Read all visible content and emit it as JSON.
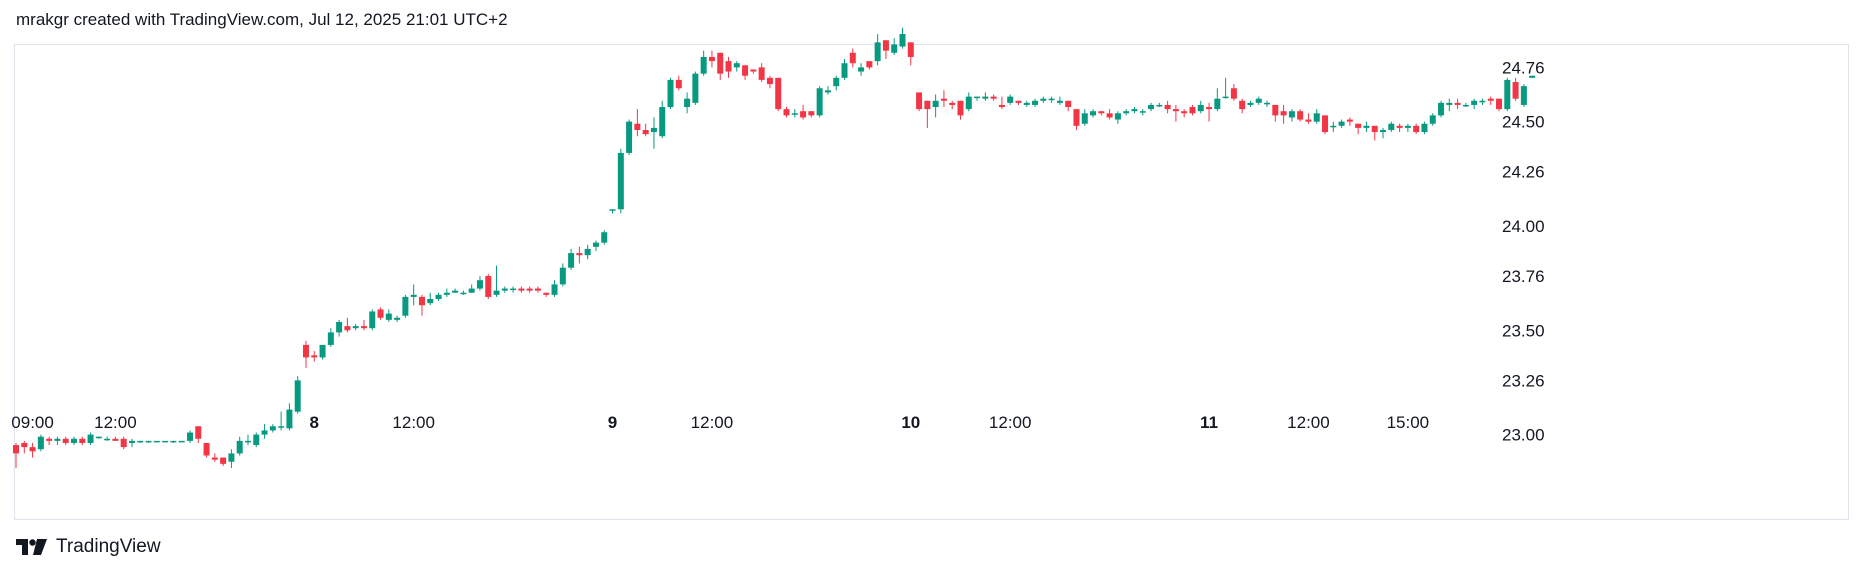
{
  "header": {
    "caption": "mrakgr created with TradingView.com, Jul 12, 2025 21:01 UTC+2"
  },
  "footer": {
    "brand": "TradingView",
    "logo_icon": "tradingview-logo-icon"
  },
  "colors": {
    "up": "#089981",
    "down": "#f23645",
    "border": "#e0e3eb",
    "text": "#131722"
  },
  "chart_data": {
    "type": "candlestick",
    "title": "",
    "ylim": [
      22.84,
      24.92
    ],
    "y_ticks": [
      "24.76",
      "24.50",
      "24.26",
      "24.00",
      "23.76",
      "23.50",
      "23.26",
      "23.00"
    ],
    "x_ticks": [
      {
        "label": "09:00",
        "bar": 2,
        "bold": false
      },
      {
        "label": "12:00",
        "bar": 12,
        "bold": false
      },
      {
        "label": "8",
        "bar": 36,
        "bold": true
      },
      {
        "label": "12:00",
        "bar": 48,
        "bold": false
      },
      {
        "label": "9",
        "bar": 72,
        "bold": true
      },
      {
        "label": "12:00",
        "bar": 84,
        "bold": false
      },
      {
        "label": "10",
        "bar": 108,
        "bold": true
      },
      {
        "label": "12:00",
        "bar": 120,
        "bold": false
      },
      {
        "label": "11",
        "bar": 144,
        "bold": true
      },
      {
        "label": "12:00",
        "bar": 156,
        "bold": false
      },
      {
        "label": "15:00",
        "bar": 168,
        "bold": false
      }
    ],
    "candles": [
      [
        22.95,
        22.96,
        22.84,
        22.91
      ],
      [
        22.96,
        22.97,
        22.91,
        22.94
      ],
      [
        22.94,
        22.96,
        22.89,
        22.92
      ],
      [
        22.93,
        23.0,
        22.92,
        22.99
      ],
      [
        22.98,
        22.99,
        22.95,
        22.97
      ],
      [
        22.97,
        22.99,
        22.95,
        22.98
      ],
      [
        22.98,
        22.99,
        22.95,
        22.96
      ],
      [
        22.96,
        22.99,
        22.95,
        22.98
      ],
      [
        22.98,
        22.99,
        22.95,
        22.96
      ],
      [
        22.96,
        23.01,
        22.95,
        23.0
      ],
      [
        22.99,
        22.99,
        22.98,
        22.99
      ],
      [
        22.98,
        22.99,
        22.97,
        22.98
      ],
      [
        22.98,
        22.99,
        22.97,
        22.97
      ],
      [
        22.98,
        22.99,
        22.93,
        22.94
      ],
      [
        22.96,
        22.98,
        22.94,
        22.97
      ],
      [
        22.97,
        22.97,
        22.96,
        22.97
      ],
      [
        22.97,
        22.97,
        22.96,
        22.97
      ],
      [
        22.97,
        22.97,
        22.97,
        22.97
      ],
      [
        22.97,
        22.97,
        22.97,
        22.97
      ],
      [
        22.97,
        22.97,
        22.96,
        22.97
      ],
      [
        22.97,
        22.97,
        22.97,
        22.97
      ],
      [
        22.97,
        23.02,
        22.96,
        23.01
      ],
      [
        23.04,
        23.04,
        22.96,
        22.98
      ],
      [
        22.96,
        22.96,
        22.89,
        22.9
      ],
      [
        22.89,
        22.91,
        22.87,
        22.88
      ],
      [
        22.89,
        22.89,
        22.85,
        22.86
      ],
      [
        22.87,
        22.93,
        22.84,
        22.91
      ],
      [
        22.91,
        22.99,
        22.9,
        22.97
      ],
      [
        22.97,
        23.0,
        22.95,
        22.97
      ],
      [
        22.95,
        23.01,
        22.94,
        23.0
      ],
      [
        23.0,
        23.05,
        22.98,
        23.02
      ],
      [
        23.02,
        23.05,
        23.01,
        23.04
      ],
      [
        23.04,
        23.11,
        23.02,
        23.04
      ],
      [
        23.03,
        23.15,
        23.02,
        23.12
      ],
      [
        23.11,
        23.28,
        23.1,
        23.26
      ],
      [
        23.43,
        23.45,
        23.32,
        23.37
      ],
      [
        23.38,
        23.4,
        23.35,
        23.37
      ],
      [
        23.37,
        23.43,
        23.36,
        23.43
      ],
      [
        23.43,
        23.51,
        23.42,
        23.49
      ],
      [
        23.49,
        23.55,
        23.47,
        23.54
      ],
      [
        23.52,
        23.56,
        23.49,
        23.5
      ],
      [
        23.51,
        23.53,
        23.5,
        23.52
      ],
      [
        23.52,
        23.55,
        23.5,
        23.51
      ],
      [
        23.51,
        23.6,
        23.5,
        23.59
      ],
      [
        23.6,
        23.61,
        23.55,
        23.56
      ],
      [
        23.55,
        23.6,
        23.54,
        23.58
      ],
      [
        23.55,
        23.57,
        23.54,
        23.56
      ],
      [
        23.57,
        23.67,
        23.56,
        23.66
      ],
      [
        23.66,
        23.72,
        23.62,
        23.67
      ],
      [
        23.66,
        23.67,
        23.57,
        23.62
      ],
      [
        23.63,
        23.68,
        23.62,
        23.65
      ],
      [
        23.65,
        23.68,
        23.64,
        23.67
      ],
      [
        23.67,
        23.7,
        23.66,
        23.68
      ],
      [
        23.68,
        23.7,
        23.68,
        23.69
      ],
      [
        23.68,
        23.69,
        23.67,
        23.68
      ],
      [
        23.68,
        23.72,
        23.68,
        23.7
      ],
      [
        23.7,
        23.76,
        23.69,
        23.74
      ],
      [
        23.76,
        23.77,
        23.65,
        23.66
      ],
      [
        23.67,
        23.81,
        23.66,
        23.69
      ],
      [
        23.69,
        23.71,
        23.68,
        23.7
      ],
      [
        23.7,
        23.71,
        23.68,
        23.7
      ],
      [
        23.7,
        23.71,
        23.68,
        23.69
      ],
      [
        23.7,
        23.71,
        23.68,
        23.69
      ],
      [
        23.7,
        23.71,
        23.68,
        23.69
      ],
      [
        23.68,
        23.68,
        23.66,
        23.67
      ],
      [
        23.67,
        23.74,
        23.66,
        23.72
      ],
      [
        23.72,
        23.82,
        23.71,
        23.8
      ],
      [
        23.8,
        23.89,
        23.79,
        23.87
      ],
      [
        23.87,
        23.9,
        23.82,
        23.86
      ],
      [
        23.86,
        23.91,
        23.84,
        23.89
      ],
      [
        23.9,
        23.93,
        23.88,
        23.92
      ],
      [
        23.92,
        23.98,
        23.91,
        23.97
      ],
      [
        24.08,
        24.08,
        24.06,
        24.08
      ],
      [
        24.08,
        24.37,
        24.06,
        24.35
      ],
      [
        24.35,
        24.51,
        24.34,
        24.5
      ],
      [
        24.49,
        24.56,
        24.43,
        24.46
      ],
      [
        24.46,
        24.49,
        24.43,
        24.44
      ],
      [
        24.45,
        24.52,
        24.37,
        24.47
      ],
      [
        24.43,
        24.6,
        24.42,
        24.57
      ],
      [
        24.57,
        24.71,
        24.56,
        24.7
      ],
      [
        24.7,
        24.72,
        24.65,
        24.66
      ],
      [
        24.57,
        24.64,
        24.54,
        24.61
      ],
      [
        24.59,
        24.74,
        24.58,
        24.73
      ],
      [
        24.73,
        24.84,
        24.72,
        24.81
      ],
      [
        24.81,
        24.84,
        24.76,
        24.79
      ],
      [
        24.83,
        24.83,
        24.7,
        24.73
      ],
      [
        24.79,
        24.81,
        24.71,
        24.74
      ],
      [
        24.76,
        24.79,
        24.74,
        24.78
      ],
      [
        24.77,
        24.77,
        24.7,
        24.72
      ],
      [
        24.75,
        24.75,
        24.73,
        24.74
      ],
      [
        24.76,
        24.78,
        24.69,
        24.7
      ],
      [
        24.71,
        24.72,
        24.66,
        24.68
      ],
      [
        24.71,
        24.71,
        24.55,
        24.56
      ],
      [
        24.56,
        24.57,
        24.52,
        24.53
      ],
      [
        24.54,
        24.56,
        24.52,
        24.54
      ],
      [
        24.55,
        24.58,
        24.51,
        24.52
      ],
      [
        24.55,
        24.55,
        24.52,
        24.53
      ],
      [
        24.53,
        24.67,
        24.52,
        24.66
      ],
      [
        24.64,
        24.67,
        24.63,
        24.65
      ],
      [
        24.67,
        24.72,
        24.65,
        24.71
      ],
      [
        24.71,
        24.8,
        24.7,
        24.78
      ],
      [
        24.83,
        24.85,
        24.76,
        24.78
      ],
      [
        24.74,
        24.78,
        24.72,
        24.76
      ],
      [
        24.79,
        24.79,
        24.75,
        24.76
      ],
      [
        24.79,
        24.92,
        24.77,
        24.88
      ],
      [
        24.89,
        24.89,
        24.8,
        24.84
      ],
      [
        24.83,
        24.9,
        24.82,
        24.87
      ],
      [
        24.86,
        24.95,
        24.85,
        24.92
      ],
      [
        24.88,
        24.88,
        24.77,
        24.81
      ],
      [
        24.64,
        24.64,
        24.55,
        24.56
      ],
      [
        24.6,
        24.6,
        24.47,
        24.56
      ],
      [
        24.57,
        24.63,
        24.52,
        24.6
      ],
      [
        24.61,
        24.65,
        24.57,
        24.6
      ],
      [
        24.59,
        24.6,
        24.56,
        24.58
      ],
      [
        24.6,
        24.6,
        24.51,
        24.53
      ],
      [
        24.56,
        24.64,
        24.55,
        24.62
      ],
      [
        24.62,
        24.62,
        24.6,
        24.62
      ],
      [
        24.61,
        24.64,
        24.6,
        24.62
      ],
      [
        24.62,
        24.63,
        24.6,
        24.61
      ],
      [
        24.58,
        24.62,
        24.56,
        24.57
      ],
      [
        24.59,
        24.63,
        24.58,
        24.62
      ],
      [
        24.6,
        24.6,
        24.58,
        24.59
      ],
      [
        24.58,
        24.6,
        24.57,
        24.59
      ],
      [
        24.58,
        24.61,
        24.57,
        24.6
      ],
      [
        24.6,
        24.62,
        24.59,
        24.61
      ],
      [
        24.61,
        24.62,
        24.59,
        24.61
      ],
      [
        24.59,
        24.62,
        24.58,
        24.6
      ],
      [
        24.6,
        24.6,
        24.55,
        24.57
      ],
      [
        24.56,
        24.56,
        24.46,
        24.48
      ],
      [
        24.49,
        24.56,
        24.48,
        24.54
      ],
      [
        24.53,
        24.56,
        24.52,
        24.55
      ],
      [
        24.55,
        24.55,
        24.53,
        24.54
      ],
      [
        24.54,
        24.56,
        24.51,
        24.52
      ],
      [
        24.51,
        24.55,
        24.49,
        24.54
      ],
      [
        24.54,
        24.56,
        24.53,
        24.55
      ],
      [
        24.55,
        24.57,
        24.54,
        24.56
      ],
      [
        24.55,
        24.56,
        24.53,
        24.55
      ],
      [
        24.56,
        24.59,
        24.55,
        24.58
      ],
      [
        24.58,
        24.59,
        24.57,
        24.58
      ],
      [
        24.58,
        24.6,
        24.54,
        24.56
      ],
      [
        24.56,
        24.58,
        24.5,
        24.55
      ],
      [
        24.55,
        24.56,
        24.52,
        24.54
      ],
      [
        24.57,
        24.58,
        24.53,
        24.54
      ],
      [
        24.55,
        24.6,
        24.54,
        24.58
      ],
      [
        24.57,
        24.59,
        24.5,
        24.56
      ],
      [
        24.56,
        24.66,
        24.55,
        24.61
      ],
      [
        24.62,
        24.71,
        24.61,
        24.62
      ],
      [
        24.66,
        24.68,
        24.6,
        24.61
      ],
      [
        24.6,
        24.61,
        24.54,
        24.56
      ],
      [
        24.58,
        24.6,
        24.57,
        24.59
      ],
      [
        24.59,
        24.62,
        24.58,
        24.61
      ],
      [
        24.59,
        24.6,
        24.57,
        24.59
      ],
      [
        24.58,
        24.58,
        24.5,
        24.53
      ],
      [
        24.55,
        24.58,
        24.49,
        24.53
      ],
      [
        24.52,
        24.56,
        24.5,
        24.55
      ],
      [
        24.55,
        24.56,
        24.5,
        24.51
      ],
      [
        24.51,
        24.54,
        24.49,
        24.5
      ],
      [
        24.5,
        24.56,
        24.49,
        24.54
      ],
      [
        24.53,
        24.53,
        24.44,
        24.45
      ],
      [
        24.48,
        24.5,
        24.45,
        24.48
      ],
      [
        24.48,
        24.51,
        24.47,
        24.5
      ],
      [
        24.51,
        24.52,
        24.48,
        24.5
      ],
      [
        24.49,
        24.49,
        24.44,
        24.47
      ],
      [
        24.47,
        24.5,
        24.45,
        24.48
      ],
      [
        24.48,
        24.48,
        24.41,
        24.45
      ],
      [
        24.45,
        24.47,
        24.42,
        24.46
      ],
      [
        24.46,
        24.5,
        24.45,
        24.49
      ],
      [
        24.48,
        24.49,
        24.45,
        24.47
      ],
      [
        24.47,
        24.49,
        24.45,
        24.48
      ],
      [
        24.48,
        24.49,
        24.44,
        24.45
      ],
      [
        24.45,
        24.5,
        24.44,
        24.49
      ],
      [
        24.49,
        24.54,
        24.48,
        24.53
      ],
      [
        24.53,
        24.6,
        24.52,
        24.59
      ],
      [
        24.58,
        24.61,
        24.55,
        24.59
      ],
      [
        24.59,
        24.61,
        24.56,
        24.58
      ],
      [
        24.58,
        24.59,
        24.57,
        24.58
      ],
      [
        24.58,
        24.61,
        24.56,
        24.6
      ],
      [
        24.6,
        24.61,
        24.58,
        24.6
      ],
      [
        24.61,
        24.62,
        24.58,
        24.6
      ],
      [
        24.61,
        24.61,
        24.55,
        24.56
      ],
      [
        24.56,
        24.71,
        24.55,
        24.7
      ],
      [
        24.69,
        24.71,
        24.6,
        24.61
      ],
      [
        24.58,
        24.68,
        24.57,
        24.67
      ],
      [
        24.71,
        24.72,
        24.71,
        24.72
      ]
    ]
  }
}
